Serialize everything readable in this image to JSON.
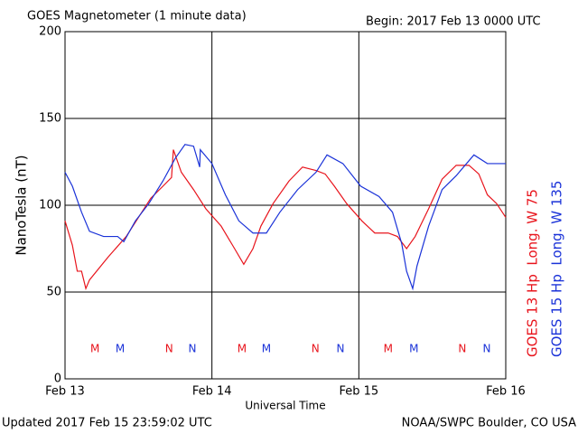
{
  "chart_data": {
    "type": "line",
    "title": "GOES Magnetometer (1 minute data)",
    "subtitle": "Begin:  2017 Feb 13 0000 UTC",
    "ylabel": "NanoTesla (nT)",
    "xlabel": "Universal Time",
    "footer_left": "Updated 2017 Feb 15 23:59:02 UTC",
    "footer_right": "NOAA/SWPC Boulder, CO USA",
    "xlim": [
      0,
      72
    ],
    "xticks": [
      {
        "value": 0,
        "label": "Feb 13"
      },
      {
        "value": 24,
        "label": "Feb 14"
      },
      {
        "value": 48,
        "label": "Feb 15"
      },
      {
        "value": 72,
        "label": "Feb 16"
      }
    ],
    "ylim": [
      0,
      200
    ],
    "yticks": [
      0,
      50,
      100,
      150,
      200
    ],
    "grid": true,
    "series": [
      {
        "name": "GOES 13 Hp  Long. W 75",
        "color": "#e8141c",
        "x": [
          0,
          1.2,
          2,
          2.7,
          3.4,
          4,
          7,
          10,
          12,
          14,
          16,
          17.4,
          17.7,
          19,
          21,
          23,
          25.5,
          27.7,
          29.2,
          30.7,
          32,
          34,
          36.6,
          38.8,
          41,
          42.5,
          44,
          46,
          48.5,
          50.6,
          52.8,
          54.3,
          55.8,
          57.2,
          59.4,
          61.6,
          63.9,
          66,
          67.6,
          69,
          70.5,
          72
        ],
        "values": [
          91,
          77,
          62,
          62,
          52,
          57,
          70,
          82,
          93,
          104,
          111,
          116,
          132,
          119,
          109,
          98,
          88,
          75,
          66,
          75,
          88,
          101,
          114,
          122,
          120,
          118,
          111,
          101,
          91,
          84,
          84,
          82,
          75,
          82,
          98,
          115,
          123,
          123,
          118,
          106,
          101,
          93
        ]
      },
      {
        "name": "GOES 15 Hp  Long. W 135",
        "color": "#1a32d8",
        "x": [
          0,
          1.2,
          2.7,
          4,
          6.3,
          8.6,
          9.6,
          11.5,
          13.7,
          16,
          18,
          19.6,
          21,
          22,
          22.1,
          24,
          26.2,
          28.4,
          30.7,
          32.9,
          35.1,
          38,
          41,
          42.8,
          45.4,
          48.3,
          51.3,
          53.5,
          55,
          55.8,
          56.8,
          57.5,
          59.4,
          61.6,
          63.9,
          66.8,
          69,
          72
        ],
        "values": [
          119,
          111,
          96,
          85,
          82,
          82,
          79,
          91,
          101,
          114,
          127,
          135,
          134,
          122,
          132,
          124,
          106,
          91,
          84,
          84,
          96,
          109,
          119,
          129,
          124,
          111,
          105,
          96,
          78,
          62,
          52,
          65,
          88,
          109,
          117,
          129,
          124,
          124
        ]
      }
    ],
    "annotations": [
      {
        "text": "M",
        "x": 4.9,
        "series": 0
      },
      {
        "text": "M",
        "x": 9,
        "series": 1
      },
      {
        "text": "N",
        "x": 17,
        "series": 0
      },
      {
        "text": "N",
        "x": 20.8,
        "series": 1
      },
      {
        "text": "M",
        "x": 28.9,
        "series": 0
      },
      {
        "text": "M",
        "x": 32.9,
        "series": 1
      },
      {
        "text": "N",
        "x": 40.9,
        "series": 0
      },
      {
        "text": "N",
        "x": 45,
        "series": 1
      },
      {
        "text": "M",
        "x": 52.8,
        "series": 0
      },
      {
        "text": "M",
        "x": 57,
        "series": 1
      },
      {
        "text": "N",
        "x": 64.9,
        "series": 0
      },
      {
        "text": "N",
        "x": 68.9,
        "series": 1
      }
    ]
  }
}
